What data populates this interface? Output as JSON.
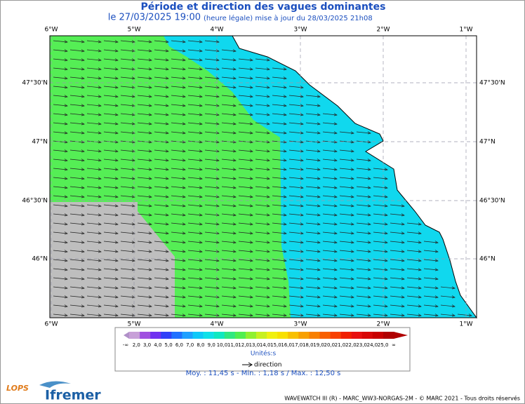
{
  "header": {
    "title": "Période et direction des vagues dominantes",
    "date": "le 27/03/2025 19:00",
    "update": "(heure légale) mise à jour du 28/03/2025 21h08"
  },
  "axes": {
    "lon": [
      "6°W",
      "5°W",
      "4°W",
      "3°W",
      "2°W",
      "1°W"
    ],
    "lat": [
      "47°30'N",
      "47°N",
      "46°30'N",
      "46°N"
    ]
  },
  "legend": {
    "labels": [
      "-∞",
      "2,0",
      "3,0",
      "4,0",
      "5,0",
      "6,0",
      "7,0",
      "8,0",
      "9,0",
      "10,0",
      "11,0",
      "12,0",
      "13,0",
      "14,0",
      "15,0",
      "16,0",
      "17,0",
      "18,0",
      "19,0",
      "20,0",
      "21,0",
      "22,0",
      "23,0",
      "24,0",
      "25,0",
      "∞"
    ],
    "unit": "Unités:s",
    "direction": "direction"
  },
  "stats": "Moy. : 11,45 s  -  Min. : 1,18 s / Max. : 12,50 s",
  "footer": "WAVEWATCH III (R) - MARC_WW3-NORGAS-2M - © MARC 2021 - Tous droits réservés",
  "logos": {
    "lops": "LOPS",
    "ifremer": "Ifremer"
  }
}
